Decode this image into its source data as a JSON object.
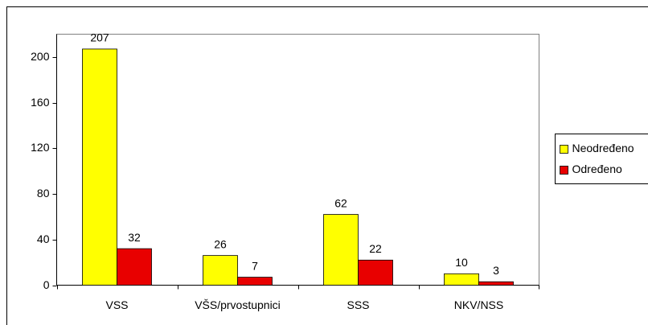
{
  "chart_data": {
    "type": "bar",
    "categories": [
      "VSS",
      "VŠS/prvostupnici",
      "SSS",
      "NKV/NSS"
    ],
    "series": [
      {
        "name": "Neodređeno",
        "color": "#ffff00",
        "values": [
          207,
          26,
          62,
          10
        ]
      },
      {
        "name": "Određeno",
        "color": "#e80000",
        "values": [
          32,
          7,
          22,
          3
        ]
      }
    ],
    "ylim": [
      0,
      220
    ],
    "yticks": [
      0,
      40,
      80,
      120,
      160,
      200
    ],
    "grid": false,
    "legend": "right"
  }
}
